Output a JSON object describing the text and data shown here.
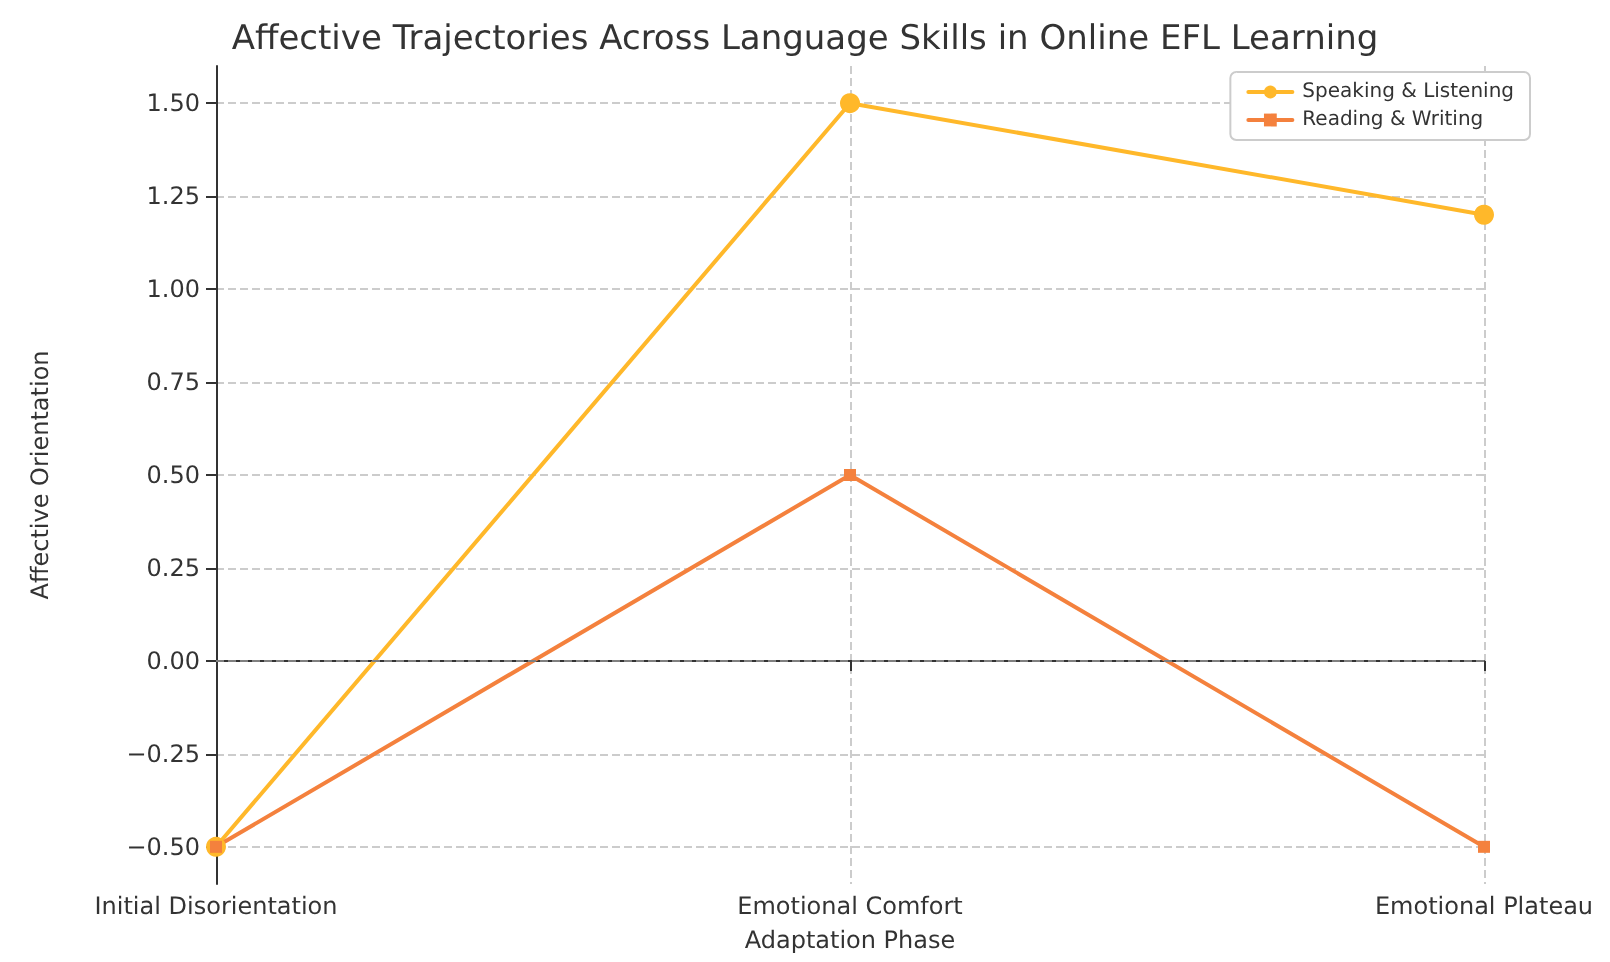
{
  "chart_data": {
    "type": "line",
    "title": "Affective Trajectories Across Language Skills in Online EFL Learning",
    "xlabel": "Adaptation Phase",
    "ylabel": "Affective Orientation",
    "categories": [
      "Initial Disorientation",
      "Emotional Comfort",
      "Emotional Plateau"
    ],
    "series": [
      {
        "name": "Speaking & Listening",
        "color": "#ffb82a",
        "marker": "circle",
        "values": [
          -0.5,
          1.5,
          1.2
        ]
      },
      {
        "name": "Reading & Writing",
        "color": "#f4813d",
        "marker": "square",
        "values": [
          -0.5,
          0.5,
          -0.5
        ]
      }
    ],
    "ylim": [
      -0.6,
      1.6
    ],
    "yticks": [
      {
        "value": -0.5,
        "label": "−0.50"
      },
      {
        "value": -0.25,
        "label": "−0.25"
      },
      {
        "value": 0,
        "label": "0.00"
      },
      {
        "value": 0.25,
        "label": "0.25"
      },
      {
        "value": 0.5,
        "label": "0.50"
      },
      {
        "value": 0.75,
        "label": "0.75"
      },
      {
        "value": 1,
        "label": "1.00"
      },
      {
        "value": 1.25,
        "label": "1.25"
      },
      {
        "value": 1.5,
        "label": "1.50"
      }
    ],
    "ref_lines": [
      {
        "axis": "y",
        "value": 0,
        "color": "#808080",
        "line_style": "dashed"
      }
    ],
    "grid": true,
    "legend": "top right",
    "line_style": "solid"
  }
}
